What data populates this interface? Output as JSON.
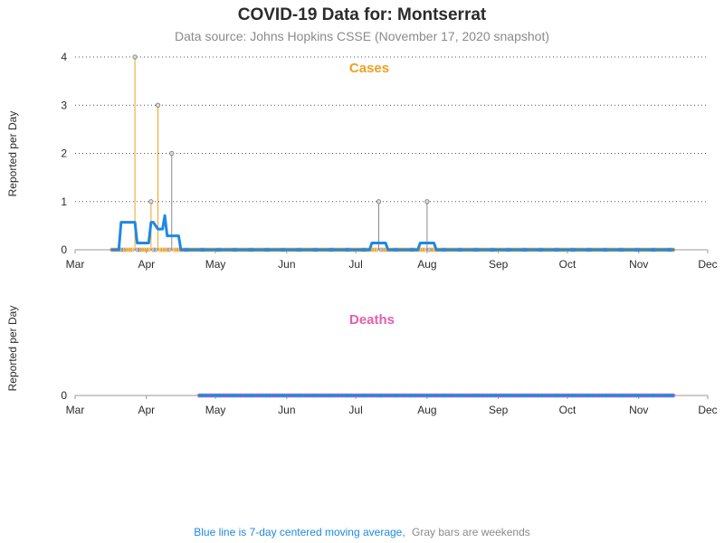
{
  "title": "COVID-19 Data for: Montserrat",
  "subtitle": "Data source: Johns Hopkins CSSE (November 17, 2020 snapshot)",
  "footnote": {
    "blue_text": "Blue line is 7-day centered moving average,",
    "gray_text": "Gray bars are weekends"
  },
  "colors": {
    "cases": "#f0a020",
    "deaths": "#e45fae",
    "moving_average": "#1f88e5",
    "weekend": "#8a8a8a",
    "text": "#2b2b2b",
    "subtitle": "#8a8a8a"
  },
  "chart_data": [
    {
      "type": "bar",
      "title": "Cases",
      "ylabel": "Reported per Day",
      "x_range": [
        "2020-03-01",
        "2020-12-01"
      ],
      "x_ticks": [
        "Mar",
        "Apr",
        "May",
        "Jun",
        "Jul",
        "Aug",
        "Sep",
        "Oct",
        "Nov",
        "Dec"
      ],
      "ylim": [
        0,
        4
      ],
      "y_ticks": [
        0,
        1,
        2,
        3,
        4
      ],
      "grid": "horizontal dotted",
      "data_start": "2020-03-17",
      "data_end": "2020-11-16",
      "daily_values": [
        {
          "date": "2020-03-27",
          "value": 4,
          "weekend": false
        },
        {
          "date": "2020-04-03",
          "value": 1,
          "weekend": false
        },
        {
          "date": "2020-04-06",
          "value": 3,
          "weekend": false
        },
        {
          "date": "2020-04-12",
          "value": 2,
          "weekend": true
        },
        {
          "date": "2020-07-11",
          "value": 1,
          "weekend": true
        },
        {
          "date": "2020-08-01",
          "value": 1,
          "weekend": true
        }
      ],
      "moving_average": [
        {
          "date": "2020-03-17",
          "value": 0
        },
        {
          "date": "2020-03-20",
          "value": 0
        },
        {
          "date": "2020-03-21",
          "value": 0.57
        },
        {
          "date": "2020-03-27",
          "value": 0.57
        },
        {
          "date": "2020-03-28",
          "value": 0.14
        },
        {
          "date": "2020-04-02",
          "value": 0.14
        },
        {
          "date": "2020-04-03",
          "value": 0.57
        },
        {
          "date": "2020-04-04",
          "value": 0.57
        },
        {
          "date": "2020-04-06",
          "value": 0.43
        },
        {
          "date": "2020-04-08",
          "value": 0.43
        },
        {
          "date": "2020-04-09",
          "value": 0.71
        },
        {
          "date": "2020-04-10",
          "value": 0.29
        },
        {
          "date": "2020-04-15",
          "value": 0.29
        },
        {
          "date": "2020-04-16",
          "value": 0
        },
        {
          "date": "2020-07-07",
          "value": 0
        },
        {
          "date": "2020-07-08",
          "value": 0.14
        },
        {
          "date": "2020-07-14",
          "value": 0.14
        },
        {
          "date": "2020-07-15",
          "value": 0
        },
        {
          "date": "2020-07-28",
          "value": 0
        },
        {
          "date": "2020-07-29",
          "value": 0.14
        },
        {
          "date": "2020-08-04",
          "value": 0.14
        },
        {
          "date": "2020-08-05",
          "value": 0
        },
        {
          "date": "2020-11-16",
          "value": 0
        }
      ]
    },
    {
      "type": "bar",
      "title": "Deaths",
      "ylabel": "Reported per Day",
      "x_range": [
        "2020-03-01",
        "2020-12-01"
      ],
      "x_ticks": [
        "Mar",
        "Apr",
        "May",
        "Jun",
        "Jul",
        "Aug",
        "Sep",
        "Oct",
        "Nov",
        "Dec"
      ],
      "ylim": [
        0,
        4
      ],
      "y_ticks": [
        0
      ],
      "grid": "none",
      "data_start": "2020-04-24",
      "data_end": "2020-11-16",
      "daily_values": [],
      "moving_average": [
        {
          "date": "2020-04-24",
          "value": 0
        },
        {
          "date": "2020-11-16",
          "value": 0
        }
      ]
    }
  ]
}
